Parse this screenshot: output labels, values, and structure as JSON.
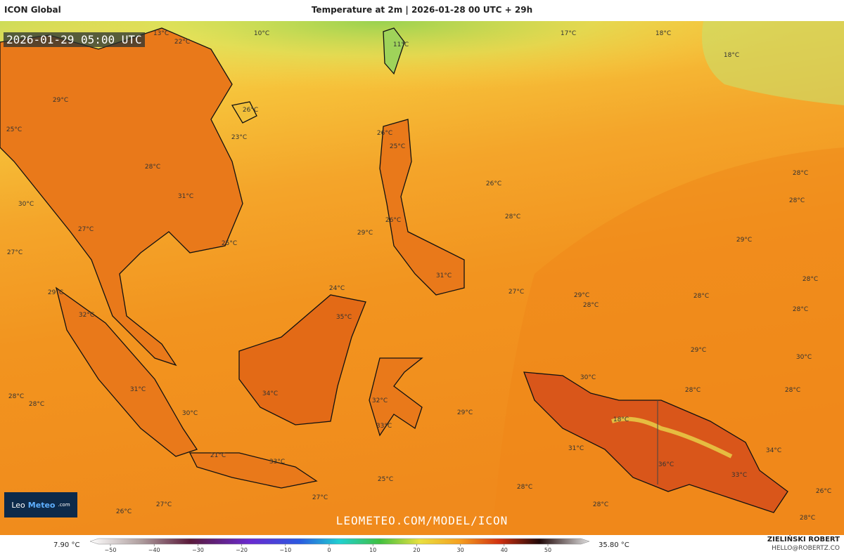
{
  "header": {
    "model": "ICON Global",
    "title": "Temperature at 2m | 2026-01-28 00 UTC + 29h"
  },
  "timestamp": "2026-01-29 05:00 UTC",
  "map_labels": [
    "13°C",
    "10°C",
    "22°C",
    "11°C",
    "17°C",
    "18°C",
    "18°C",
    "26°C",
    "29°C",
    "25°C",
    "23°C",
    "26°C",
    "25°C",
    "28°C",
    "26°C",
    "28°C",
    "30°C",
    "31°C",
    "28°C",
    "27°C",
    "29°C",
    "26°C",
    "28°C",
    "27°C",
    "25°C",
    "29°C",
    "29°C",
    "24°C",
    "31°C",
    "27°C",
    "29°C",
    "28°C",
    "28°C",
    "28°C",
    "28°C",
    "32°C",
    "35°C",
    "29°C",
    "30°C",
    "30°C",
    "31°C",
    "28°C",
    "28°C",
    "34°C",
    "32°C",
    "28°C",
    "28°C",
    "30°C",
    "29°C",
    "18°C",
    "33°C",
    "31°C",
    "34°C",
    "21°C",
    "33°C",
    "36°C",
    "33°C",
    "25°C",
    "28°C",
    "27°C",
    "26°C",
    "26°C",
    "27°C",
    "28°C",
    "28°C"
  ],
  "logo": {
    "brand": "Leo",
    "brand_bold": "Meteo",
    "suffix": ".com"
  },
  "watermark": "LEOMETEO.COM/MODEL/ICON",
  "legend": {
    "min": "7.90 °C",
    "max": "35.80 °C",
    "ticks": [
      "−50",
      "−40",
      "−30",
      "−20",
      "−10",
      "0",
      "10",
      "20",
      "30",
      "40",
      "50"
    ]
  },
  "author": {
    "name": "ZIELIŃSKI ROBERT",
    "email": "HELLO@ROBERTZ.CO"
  }
}
